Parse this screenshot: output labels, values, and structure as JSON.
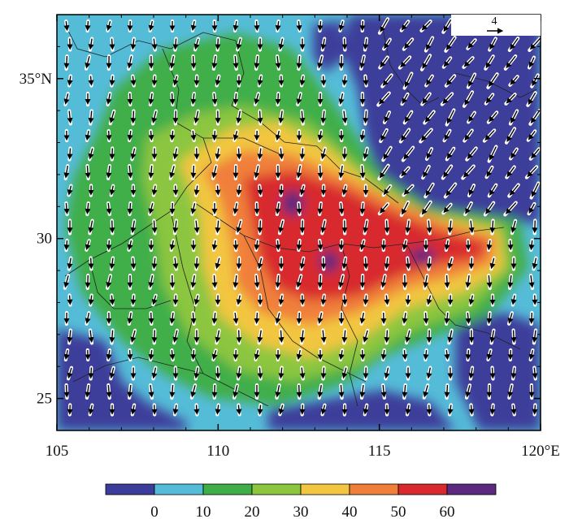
{
  "map": {
    "lon_range": [
      105,
      120
    ],
    "lat_range": [
      24,
      37
    ],
    "x_ticks": [
      {
        "value": 105,
        "label": "105"
      },
      {
        "value": 110,
        "label": "110"
      },
      {
        "value": 115,
        "label": "115"
      },
      {
        "value": 120,
        "label": "120°E"
      }
    ],
    "y_ticks": [
      {
        "value": 25,
        "label": "25"
      },
      {
        "value": 30,
        "label": "30"
      },
      {
        "value": 35,
        "label": "35°N"
      }
    ],
    "reference_vector": {
      "label": "4"
    }
  },
  "colorbar": {
    "levels": [
      "0",
      "10",
      "20",
      "30",
      "40",
      "50",
      "60"
    ],
    "colors": [
      "#3c3c9a",
      "#55bcd8",
      "#3fae49",
      "#8cc63f",
      "#f2c640",
      "#f07f3a",
      "#d8292f",
      "#5b2a7e"
    ]
  }
}
